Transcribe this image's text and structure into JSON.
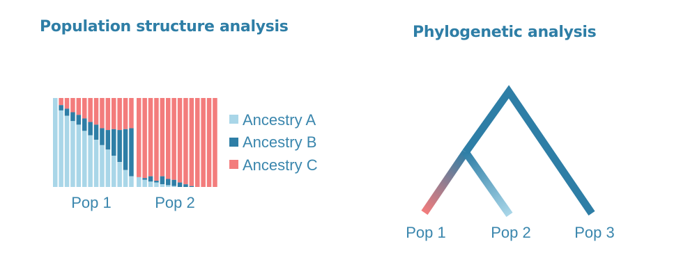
{
  "left_panel": {
    "title": "Population structure analysis",
    "legend": [
      {
        "label": "Ancestry A",
        "color": "#a9d6e8"
      },
      {
        "label": "Ancestry B",
        "color": "#2e7ea6"
      },
      {
        "label": "Ancestry C",
        "color": "#f37c7c"
      }
    ],
    "populations": [
      {
        "label": "Pop 1",
        "individuals": [
          {
            "A": 1.0,
            "B": 0.0,
            "C": 0.0
          },
          {
            "A": 0.86,
            "B": 0.06,
            "C": 0.08
          },
          {
            "A": 0.8,
            "B": 0.08,
            "C": 0.12
          },
          {
            "A": 0.74,
            "B": 0.1,
            "C": 0.16
          },
          {
            "A": 0.7,
            "B": 0.11,
            "C": 0.19
          },
          {
            "A": 0.63,
            "B": 0.14,
            "C": 0.23
          },
          {
            "A": 0.58,
            "B": 0.15,
            "C": 0.27
          },
          {
            "A": 0.53,
            "B": 0.17,
            "C": 0.3
          },
          {
            "A": 0.47,
            "B": 0.19,
            "C": 0.34
          },
          {
            "A": 0.42,
            "B": 0.22,
            "C": 0.36
          },
          {
            "A": 0.35,
            "B": 0.3,
            "C": 0.35
          },
          {
            "A": 0.28,
            "B": 0.36,
            "C": 0.36
          },
          {
            "A": 0.19,
            "B": 0.46,
            "C": 0.35
          },
          {
            "A": 0.12,
            "B": 0.54,
            "C": 0.34
          }
        ]
      },
      {
        "label": "Pop 2",
        "individuals": [
          {
            "A": 0.11,
            "B": 0.0,
            "C": 0.89
          },
          {
            "A": 0.08,
            "B": 0.02,
            "C": 0.9
          },
          {
            "A": 0.06,
            "B": 0.06,
            "C": 0.88
          },
          {
            "A": 0.05,
            "B": 0.02,
            "C": 0.93
          },
          {
            "A": 0.03,
            "B": 0.09,
            "C": 0.88
          },
          {
            "A": 0.02,
            "B": 0.07,
            "C": 0.91
          },
          {
            "A": 0.01,
            "B": 0.07,
            "C": 0.92
          },
          {
            "A": 0.0,
            "B": 0.05,
            "C": 0.95
          },
          {
            "A": 0.0,
            "B": 0.03,
            "C": 0.97
          },
          {
            "A": 0.0,
            "B": 0.01,
            "C": 0.99
          },
          {
            "A": 0.0,
            "B": 0.0,
            "C": 1.0
          },
          {
            "A": 0.0,
            "B": 0.0,
            "C": 1.0
          },
          {
            "A": 0.0,
            "B": 0.0,
            "C": 1.0
          },
          {
            "A": 0.0,
            "B": 0.0,
            "C": 1.0
          }
        ]
      }
    ]
  },
  "right_panel": {
    "title": "Phylogenetic analysis",
    "tree_color": "#2e7ea6",
    "leaves": [
      {
        "label": "Pop 1",
        "color": "#f37c7c"
      },
      {
        "label": "Pop 2",
        "color": "#a9d6e8"
      },
      {
        "label": "Pop 3",
        "color": "#2e7ea6"
      }
    ]
  }
}
